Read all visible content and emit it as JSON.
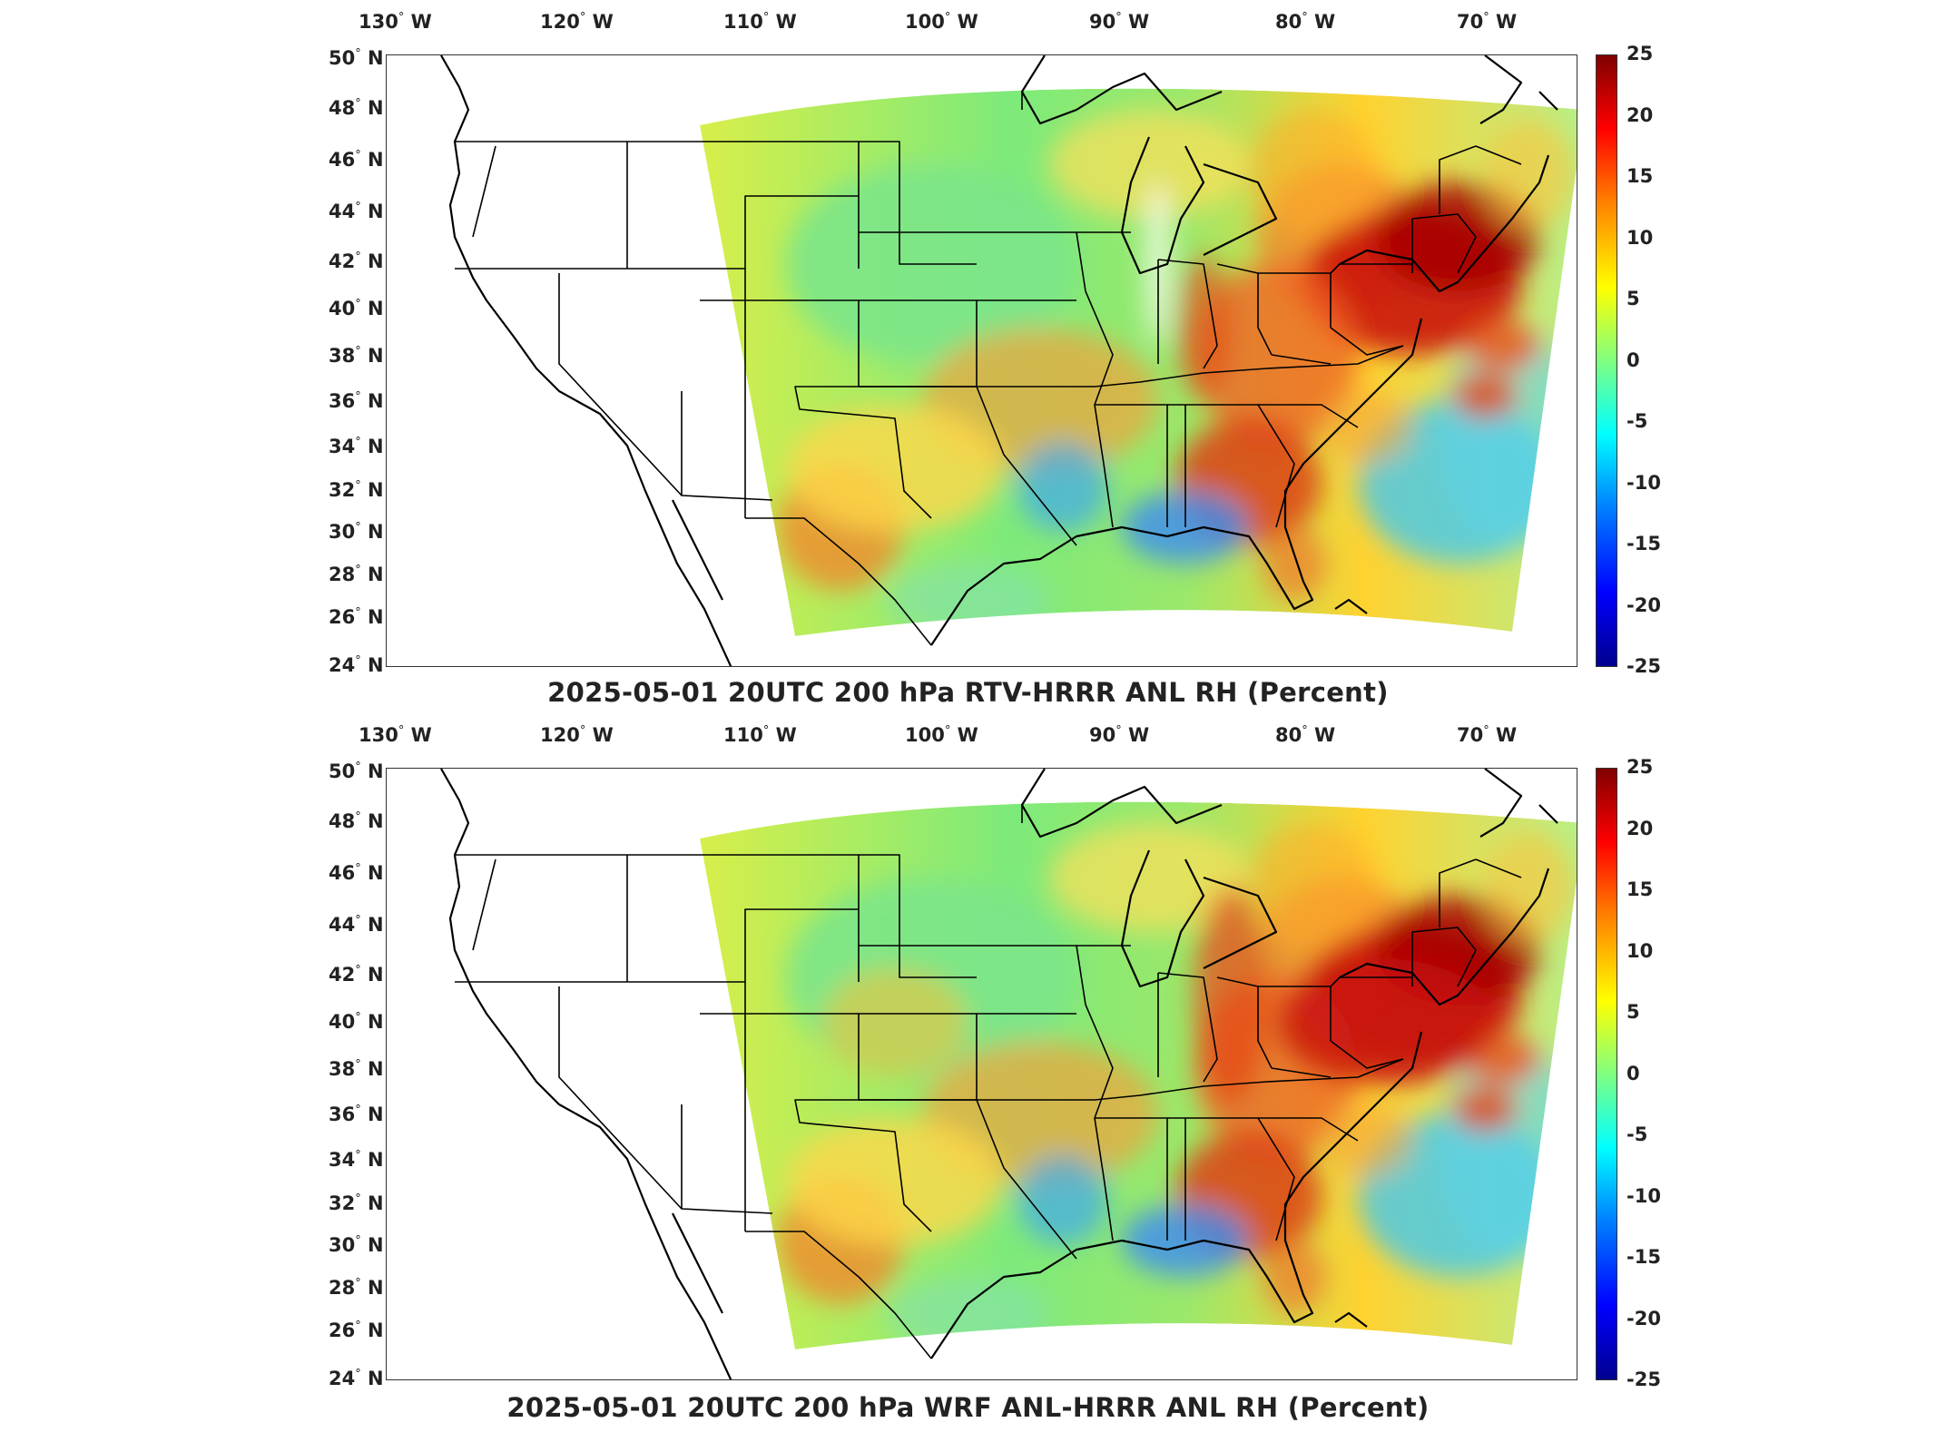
{
  "lon_labels": [
    {
      "deg": "130",
      "hemi": "W"
    },
    {
      "deg": "120",
      "hemi": "W"
    },
    {
      "deg": "110",
      "hemi": "W"
    },
    {
      "deg": "100",
      "hemi": "W"
    },
    {
      "deg": "90",
      "hemi": "W"
    },
    {
      "deg": "80",
      "hemi": "W"
    },
    {
      "deg": "70",
      "hemi": "W"
    }
  ],
  "lat_labels": [
    {
      "deg": "50",
      "hemi": "N"
    },
    {
      "deg": "48",
      "hemi": "N"
    },
    {
      "deg": "46",
      "hemi": "N"
    },
    {
      "deg": "44",
      "hemi": "N"
    },
    {
      "deg": "42",
      "hemi": "N"
    },
    {
      "deg": "40",
      "hemi": "N"
    },
    {
      "deg": "38",
      "hemi": "N"
    },
    {
      "deg": "36",
      "hemi": "N"
    },
    {
      "deg": "34",
      "hemi": "N"
    },
    {
      "deg": "32",
      "hemi": "N"
    },
    {
      "deg": "30",
      "hemi": "N"
    },
    {
      "deg": "28",
      "hemi": "N"
    },
    {
      "deg": "26",
      "hemi": "N"
    },
    {
      "deg": "24",
      "hemi": "N"
    }
  ],
  "colorbar_ticks": [
    "25",
    "20",
    "15",
    "10",
    "5",
    "0",
    "-5",
    "-10",
    "-15",
    "-20",
    "-25"
  ],
  "colorbar_range": [
    -25,
    25
  ],
  "panels": [
    {
      "title": "2025-05-01 20UTC 200 hPa RTV-HRRR ANL RH (Percent)"
    },
    {
      "title": "2025-05-01 20UTC 200 hPa WRF ANL-HRRR ANL RH (Percent)"
    }
  ],
  "colors": {
    "colormap": "jet",
    "frame": "#333333",
    "background": "#ffffff"
  }
}
